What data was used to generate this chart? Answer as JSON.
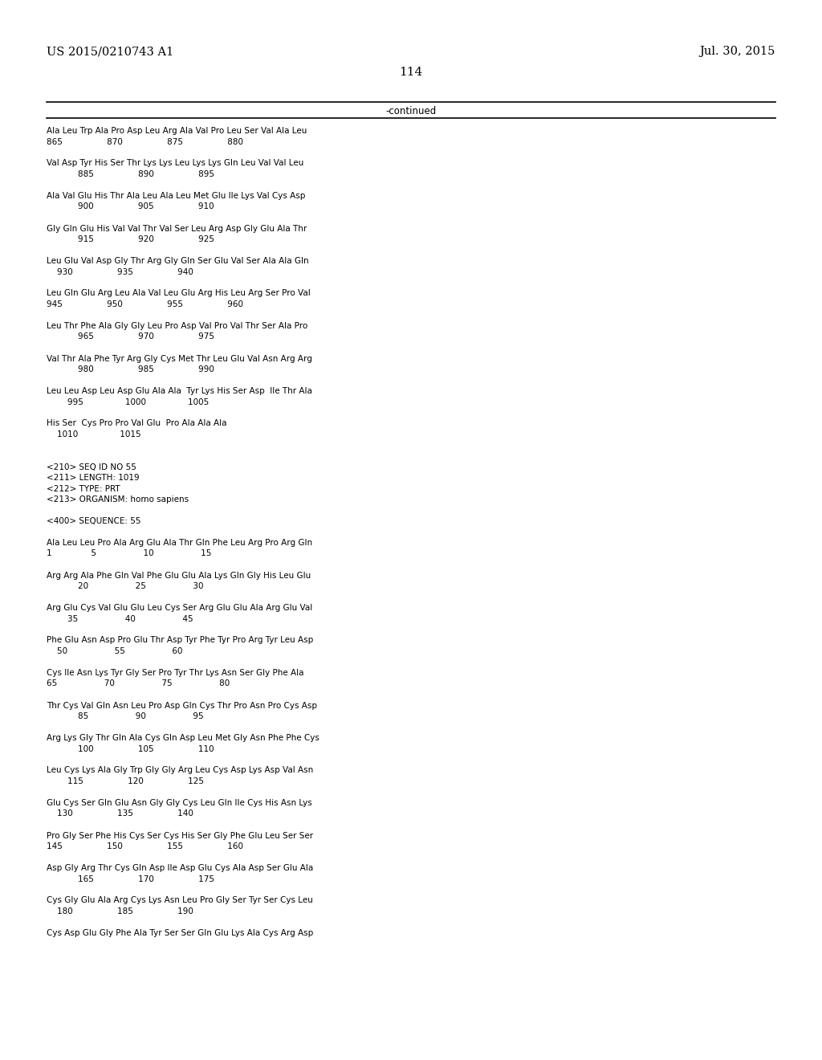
{
  "header_left": "US 2015/0210743 A1",
  "header_right": "Jul. 30, 2015",
  "page_number": "114",
  "continued_label": "-continued",
  "background_color": "#ffffff",
  "text_color": "#000000",
  "font_size": 7.5,
  "header_font_size": 10.5,
  "page_num_font_size": 11,
  "continued_font_size": 8.5,
  "lines": [
    "Ala Leu Trp Ala Pro Asp Leu Arg Ala Val Pro Leu Ser Val Ala Leu",
    "865                 870                 875                 880",
    "",
    "Val Asp Tyr His Ser Thr Lys Lys Leu Lys Lys Gln Leu Val Val Leu",
    "            885                 890                 895",
    "",
    "Ala Val Glu His Thr Ala Leu Ala Leu Met Glu Ile Lys Val Cys Asp",
    "            900                 905                 910",
    "",
    "Gly Gln Glu His Val Val Thr Val Ser Leu Arg Asp Gly Glu Ala Thr",
    "            915                 920                 925",
    "",
    "Leu Glu Val Asp Gly Thr Arg Gly Gln Ser Glu Val Ser Ala Ala Gln",
    "    930                 935                 940",
    "",
    "Leu Gln Glu Arg Leu Ala Val Leu Glu Arg His Leu Arg Ser Pro Val",
    "945                 950                 955                 960",
    "",
    "Leu Thr Phe Ala Gly Gly Leu Pro Asp Val Pro Val Thr Ser Ala Pro",
    "            965                 970                 975",
    "",
    "Val Thr Ala Phe Tyr Arg Gly Cys Met Thr Leu Glu Val Asn Arg Arg",
    "            980                 985                 990",
    "",
    "Leu Leu Asp Leu Asp Glu Ala Ala  Tyr Lys His Ser Asp  Ile Thr Ala",
    "        995                1000                1005",
    "",
    "His Ser  Cys Pro Pro Val Glu  Pro Ala Ala Ala",
    "    1010                1015",
    "",
    "",
    "<210> SEQ ID NO 55",
    "<211> LENGTH: 1019",
    "<212> TYPE: PRT",
    "<213> ORGANISM: homo sapiens",
    "",
    "<400> SEQUENCE: 55",
    "",
    "Ala Leu Leu Pro Ala Arg Glu Ala Thr Gln Phe Leu Arg Pro Arg Gln",
    "1               5                  10                  15",
    "",
    "Arg Arg Ala Phe Gln Val Phe Glu Glu Ala Lys Gln Gly His Leu Glu",
    "            20                  25                  30",
    "",
    "Arg Glu Cys Val Glu Glu Leu Cys Ser Arg Glu Glu Ala Arg Glu Val",
    "        35                  40                  45",
    "",
    "Phe Glu Asn Asp Pro Glu Thr Asp Tyr Phe Tyr Pro Arg Tyr Leu Asp",
    "    50                  55                  60",
    "",
    "Cys Ile Asn Lys Tyr Gly Ser Pro Tyr Thr Lys Asn Ser Gly Phe Ala",
    "65                  70                  75                  80",
    "",
    "Thr Cys Val Gln Asn Leu Pro Asp Gln Cys Thr Pro Asn Pro Cys Asp",
    "            85                  90                  95",
    "",
    "Arg Lys Gly Thr Gln Ala Cys Gln Asp Leu Met Gly Asn Phe Phe Cys",
    "            100                 105                 110",
    "",
    "Leu Cys Lys Ala Gly Trp Gly Gly Arg Leu Cys Asp Lys Asp Val Asn",
    "        115                 120                 125",
    "",
    "Glu Cys Ser Gln Glu Asn Gly Gly Cys Leu Gln Ile Cys His Asn Lys",
    "    130                 135                 140",
    "",
    "Pro Gly Ser Phe His Cys Ser Cys His Ser Gly Phe Glu Leu Ser Ser",
    "145                 150                 155                 160",
    "",
    "Asp Gly Arg Thr Cys Gln Asp Ile Asp Glu Cys Ala Asp Ser Glu Ala",
    "            165                 170                 175",
    "",
    "Cys Gly Glu Ala Arg Cys Lys Asn Leu Pro Gly Ser Tyr Ser Cys Leu",
    "    180                 185                 190",
    "",
    "Cys Asp Glu Gly Phe Ala Tyr Ser Ser Gln Glu Lys Ala Cys Arg Asp"
  ]
}
